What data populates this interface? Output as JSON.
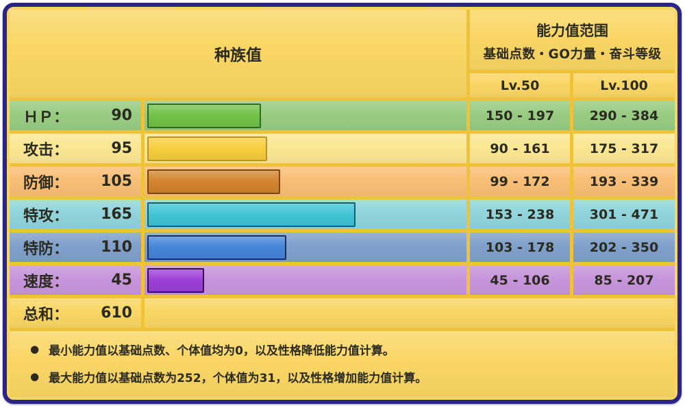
{
  "header": {
    "left_title": "种族值",
    "right_title": "能力值范围",
    "right_subtitle": "基础点数・GO力量・奋斗等级",
    "col_lv50": "Lv.50",
    "col_lv100": "Lv.100"
  },
  "table": {
    "rows": [
      {
        "label": "ＨＰ：",
        "value": "90",
        "lv50": "150 - 197",
        "lv100": "290 - 384",
        "colors": {
          "row": "#98CB82",
          "bar": "#72C147",
          "bar_border": "#2F6B1E"
        }
      },
      {
        "label": "攻击：",
        "value": "95",
        "lv50": "90 - 161",
        "lv100": "175 - 317",
        "colors": {
          "row": "#FAE793",
          "bar": "#F6CE3C",
          "bar_border": "#BD9422"
        }
      },
      {
        "label": "防御：",
        "value": "105",
        "lv50": "99 - 172",
        "lv100": "193 - 339",
        "colors": {
          "row": "#F9BE76",
          "bar": "#D2832C",
          "bar_border": "#7C470E"
        }
      },
      {
        "label": "特攻：",
        "value": "165",
        "lv50": "153 - 238",
        "lv100": "301 - 471",
        "colors": {
          "row": "#90D4DC",
          "bar": "#3FC3D4",
          "bar_border": "#125E6B"
        }
      },
      {
        "label": "特防：",
        "value": "110",
        "lv50": "103 - 178",
        "lv100": "202 - 350",
        "colors": {
          "row": "#7FA0CB",
          "bar": "#4584D8",
          "bar_border": "#132F66"
        }
      },
      {
        "label": "速度：",
        "value": "45",
        "lv50": "45 - 106",
        "lv100": "85 - 207",
        "colors": {
          "row": "#C795DC",
          "bar": "#9C3FD6",
          "bar_border": "#360B5E"
        }
      }
    ],
    "sum": {
      "label": "总和：",
      "value": "610"
    }
  },
  "footnotes": [
    "最小能力值以基础点数、个体值均为0，以及性格降低能力值计算。",
    "最大能力值以基础点数为252，个体值为31，以及性格增加能力值计算。"
  ],
  "colors": {
    "panel_border": "#2B2487",
    "panel_background": "#F9D664",
    "gridline_gold": "#EFC23A",
    "text": "#2A2A1E"
  },
  "chart_data": {
    "type": "bar",
    "title": "种族值",
    "categories": [
      "ＨＰ",
      "攻击",
      "防御",
      "特攻",
      "特防",
      "速度"
    ],
    "values": [
      90,
      95,
      105,
      165,
      110,
      45
    ],
    "total": 610,
    "max_stat": 255,
    "xlim": [
      0,
      255
    ],
    "orientation": "horizontal",
    "bar_colors": [
      "#72C147",
      "#F6CE3C",
      "#D2832C",
      "#3FC3D4",
      "#4584D8",
      "#9C3FD6"
    ],
    "series": [
      {
        "name": "Lv.50 range",
        "values": [
          "150 - 197",
          "90 - 161",
          "99 - 172",
          "153 - 238",
          "103 - 178",
          "45 - 106"
        ]
      },
      {
        "name": "Lv.100 range",
        "values": [
          "290 - 384",
          "175 - 317",
          "193 - 339",
          "301 - 471",
          "202 - 350",
          "85 - 207"
        ]
      }
    ],
    "legend_position": "none",
    "grid": false
  }
}
